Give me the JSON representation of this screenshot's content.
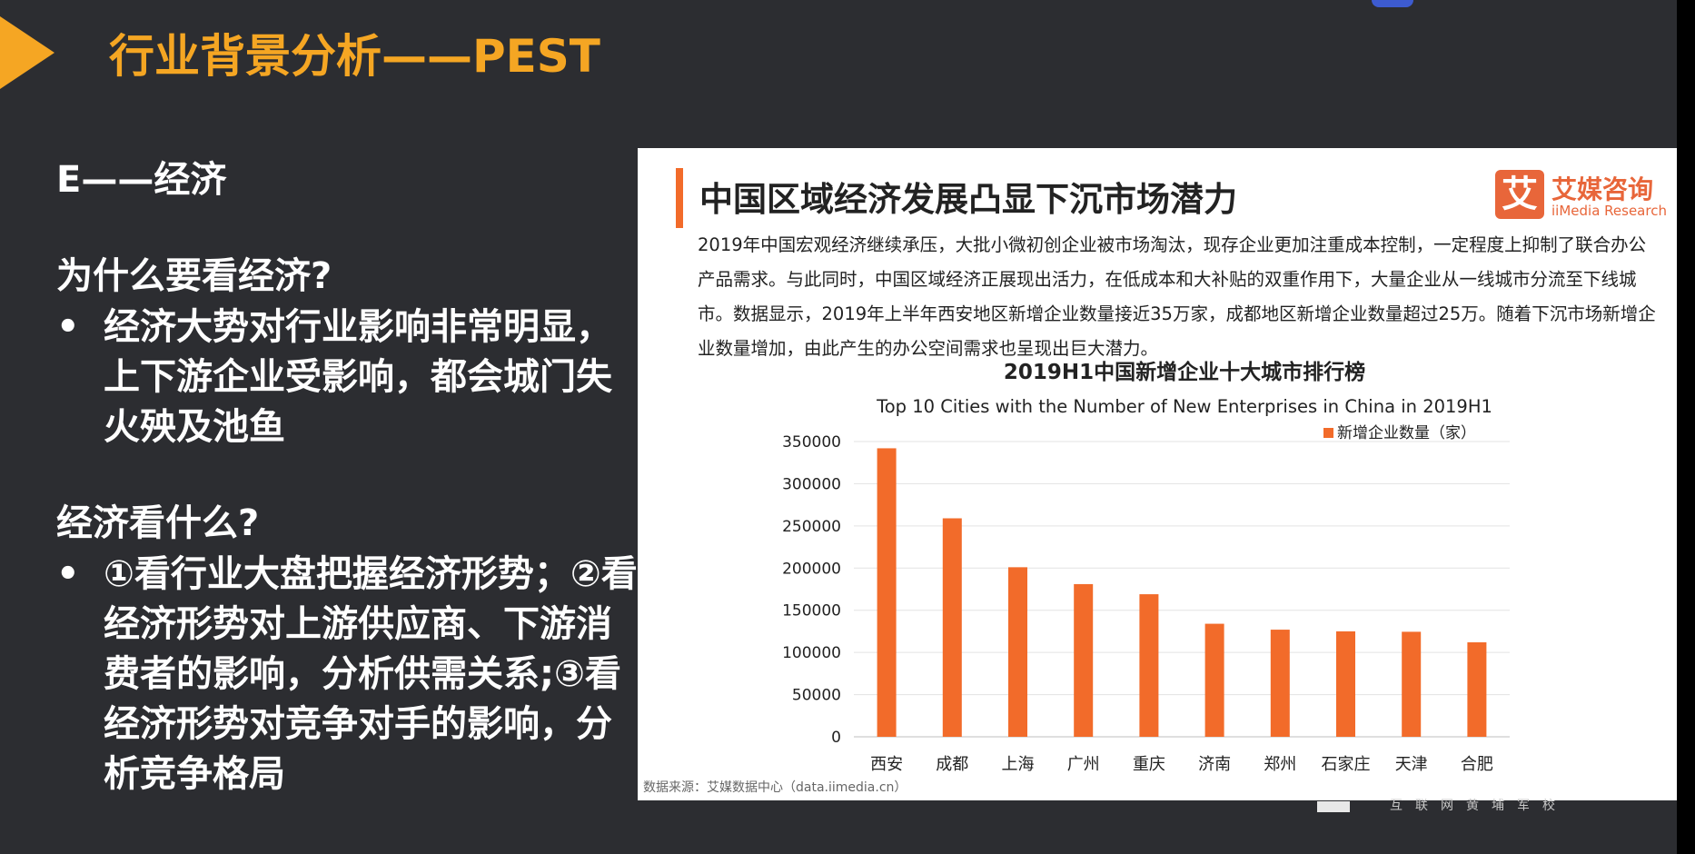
{
  "slide": {
    "title": "行业背景分析——PEST",
    "section": "E——经济",
    "q1": "为什么要看经济?",
    "b1": "经济大势对行业影响非常明显，上下游企业受影响，都会城门失火殃及池鱼",
    "q2": "经济看什么?",
    "b2": "①看行业大盘把握经济形势；②看经济形势对上游供应商、下游消费者的影响，分析供需关系;③看经济形势对竞争对手的影响，分析竞争格局",
    "bullet_glyph": "•",
    "watermark": "互联网黄埔军校"
  },
  "card": {
    "title": "中国区域经济发展凸显下沉市场潜力",
    "logo_glyph": "艾",
    "logo_cn": "艾媒咨询",
    "logo_en": "iiMedia Research",
    "description": "2019年中国宏观经济继续承压，大批小微初创企业被市场淘汰，现存企业更加注重成本控制，一定程度上抑制了联合办公产品需求。与此同时，中国区域经济正展现出活力，在低成本和大补贴的双重作用下，大量企业从一线城市分流至下线城市。数据显示，2019年上半年西安地区新增企业数量接近35万家，成都地区新增企业数量超过25万。随着下沉市场新增企业数量增加，由此产生的办公空间需求也呈现出巨大潜力。",
    "source": "数据来源：艾媒数据中心（data.iimedia.cn）"
  },
  "chart_data": {
    "type": "bar",
    "title": "2019H1中国新增企业十大城市排行榜",
    "subtitle": "Top 10 Cities with the Number of New Enterprises in China in 2019H1",
    "categories": [
      "西安",
      "成都",
      "上海",
      "广州",
      "重庆",
      "济南",
      "郑州",
      "石家庄",
      "天津",
      "合肥"
    ],
    "series": [
      {
        "name": "新增企业数量（家）",
        "values": [
          342000,
          259000,
          201000,
          181000,
          169000,
          134000,
          127000,
          125000,
          124500,
          112000
        ]
      }
    ],
    "yticks": [
      "0",
      "50000",
      "100000",
      "150000",
      "200000",
      "250000",
      "300000",
      "350000"
    ],
    "ylim": [
      0,
      350000
    ],
    "grid": true,
    "legend": "top-right",
    "color": "#f26b2a"
  }
}
